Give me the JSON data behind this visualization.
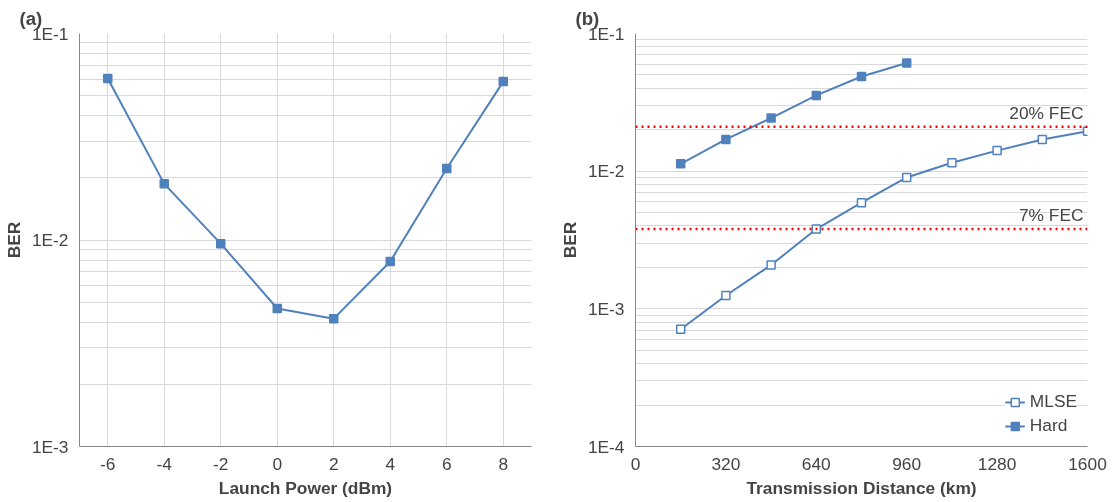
{
  "chart_data": [
    {
      "type": "line",
      "title": "(a)",
      "xlabel": "Launch Power (dBm)",
      "ylabel": "BER",
      "log": "y",
      "grid": true,
      "marker": "square",
      "line_style": "solid",
      "legend": false,
      "x": [
        -6,
        -4,
        -2,
        0,
        2,
        4,
        6,
        8
      ],
      "series": [
        {
          "color": "#4f81bd",
          "values": [
            0.0605,
            0.0187,
            0.0096,
            0.00466,
            0.00416,
            0.00787,
            0.0222,
            0.0585
          ]
        }
      ],
      "xlim": [
        -7,
        9
      ],
      "xticks": [
        -6,
        -4,
        -2,
        0,
        2,
        4,
        6,
        8
      ],
      "ylim": [
        0.001,
        0.1
      ],
      "yticks": [
        {
          "value": 0.001,
          "label": "1E-3"
        },
        {
          "value": 0.01,
          "label": "1E-2"
        },
        {
          "value": 0.1,
          "label": "1E-1"
        }
      ]
    },
    {
      "type": "line",
      "title": "(b)",
      "xlabel": "Transmission Distance (km)",
      "ylabel": "BER",
      "log": "y",
      "grid": "y",
      "marker": "square",
      "line_style": "solid",
      "legend": "bottom right",
      "series": [
        {
          "name": "MLSE",
          "color": "#4f81bd",
          "marker": "square_open",
          "x": [
            160,
            320,
            480,
            640,
            800,
            960,
            1120,
            1280,
            1440,
            1600
          ],
          "values": [
            0.00071,
            0.00125,
            0.00208,
            0.0038,
            0.0059,
            0.009,
            0.0115,
            0.0141,
            0.017,
            0.0195
          ]
        },
        {
          "name": "Hard",
          "color": "#4f81bd",
          "x": [
            160,
            320,
            480,
            640,
            800,
            960
          ],
          "values": [
            0.0113,
            0.017,
            0.0243,
            0.0355,
            0.0487,
            0.061
          ]
        }
      ],
      "ref_lines": [
        {
          "axis": "y",
          "value": 0.021,
          "label": "20% FEC",
          "color": "#ff0000",
          "line_style": "dotted"
        },
        {
          "axis": "y",
          "value": 0.0038,
          "label": "7% FEC",
          "color": "#ff0000",
          "line_style": "dotted"
        }
      ],
      "xlim": [
        0,
        1600
      ],
      "xticks": [
        0,
        320,
        640,
        960,
        1280,
        1600
      ],
      "ylim": [
        0.0001,
        0.1
      ],
      "yticks": [
        {
          "value": 0.0001,
          "label": "1E-4"
        },
        {
          "value": 0.001,
          "label": "1E-3"
        },
        {
          "value": 0.01,
          "label": "1E-2"
        },
        {
          "value": 0.1,
          "label": "1E-1"
        }
      ]
    }
  ]
}
